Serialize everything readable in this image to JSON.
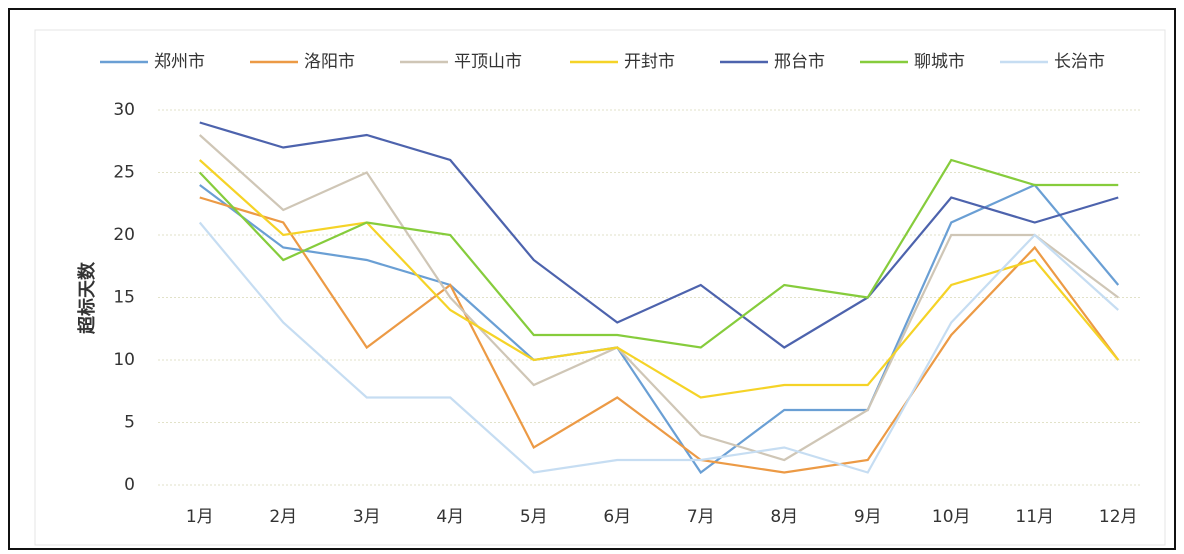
{
  "chart_data": {
    "type": "line",
    "y_label": "超标天数",
    "categories": [
      "1月",
      "2月",
      "3月",
      "4月",
      "5月",
      "6月",
      "7月",
      "8月",
      "9月",
      "10月",
      "11月",
      "12月"
    ],
    "series": [
      {
        "name": "郑州市",
        "color": "#6a9fd4",
        "values": [
          24,
          19,
          18,
          16,
          10,
          11,
          1,
          6,
          6,
          21,
          24,
          16
        ]
      },
      {
        "name": "洛阳市",
        "color": "#ec9a45",
        "values": [
          23,
          21,
          11,
          16,
          3,
          7,
          2,
          1,
          2,
          12,
          19,
          10
        ]
      },
      {
        "name": "平顶山市",
        "color": "#cfc6b6",
        "values": [
          28,
          22,
          25,
          15,
          8,
          11,
          4,
          2,
          6,
          20,
          20,
          15
        ]
      },
      {
        "name": "开封市",
        "color": "#f5d327",
        "values": [
          26,
          20,
          21,
          14,
          10,
          11,
          7,
          8,
          8,
          16,
          18,
          10
        ]
      },
      {
        "name": "邢台市",
        "color": "#4d63ad",
        "values": [
          29,
          27,
          28,
          26,
          18,
          13,
          16,
          11,
          15,
          23,
          21,
          23
        ]
      },
      {
        "name": "聊城市",
        "color": "#86cc3c",
        "values": [
          25,
          18,
          21,
          20,
          12,
          12,
          11,
          16,
          15,
          26,
          24,
          24
        ]
      },
      {
        "name": "长治市",
        "color": "#c6ddf2",
        "values": [
          21,
          13,
          7,
          7,
          1,
          2,
          2,
          3,
          1,
          13,
          20,
          14
        ]
      }
    ],
    "ylim": [
      0,
      30
    ],
    "yticks": [
      0,
      5,
      10,
      15,
      20,
      25,
      30
    ],
    "grid": true,
    "legend": "top"
  }
}
